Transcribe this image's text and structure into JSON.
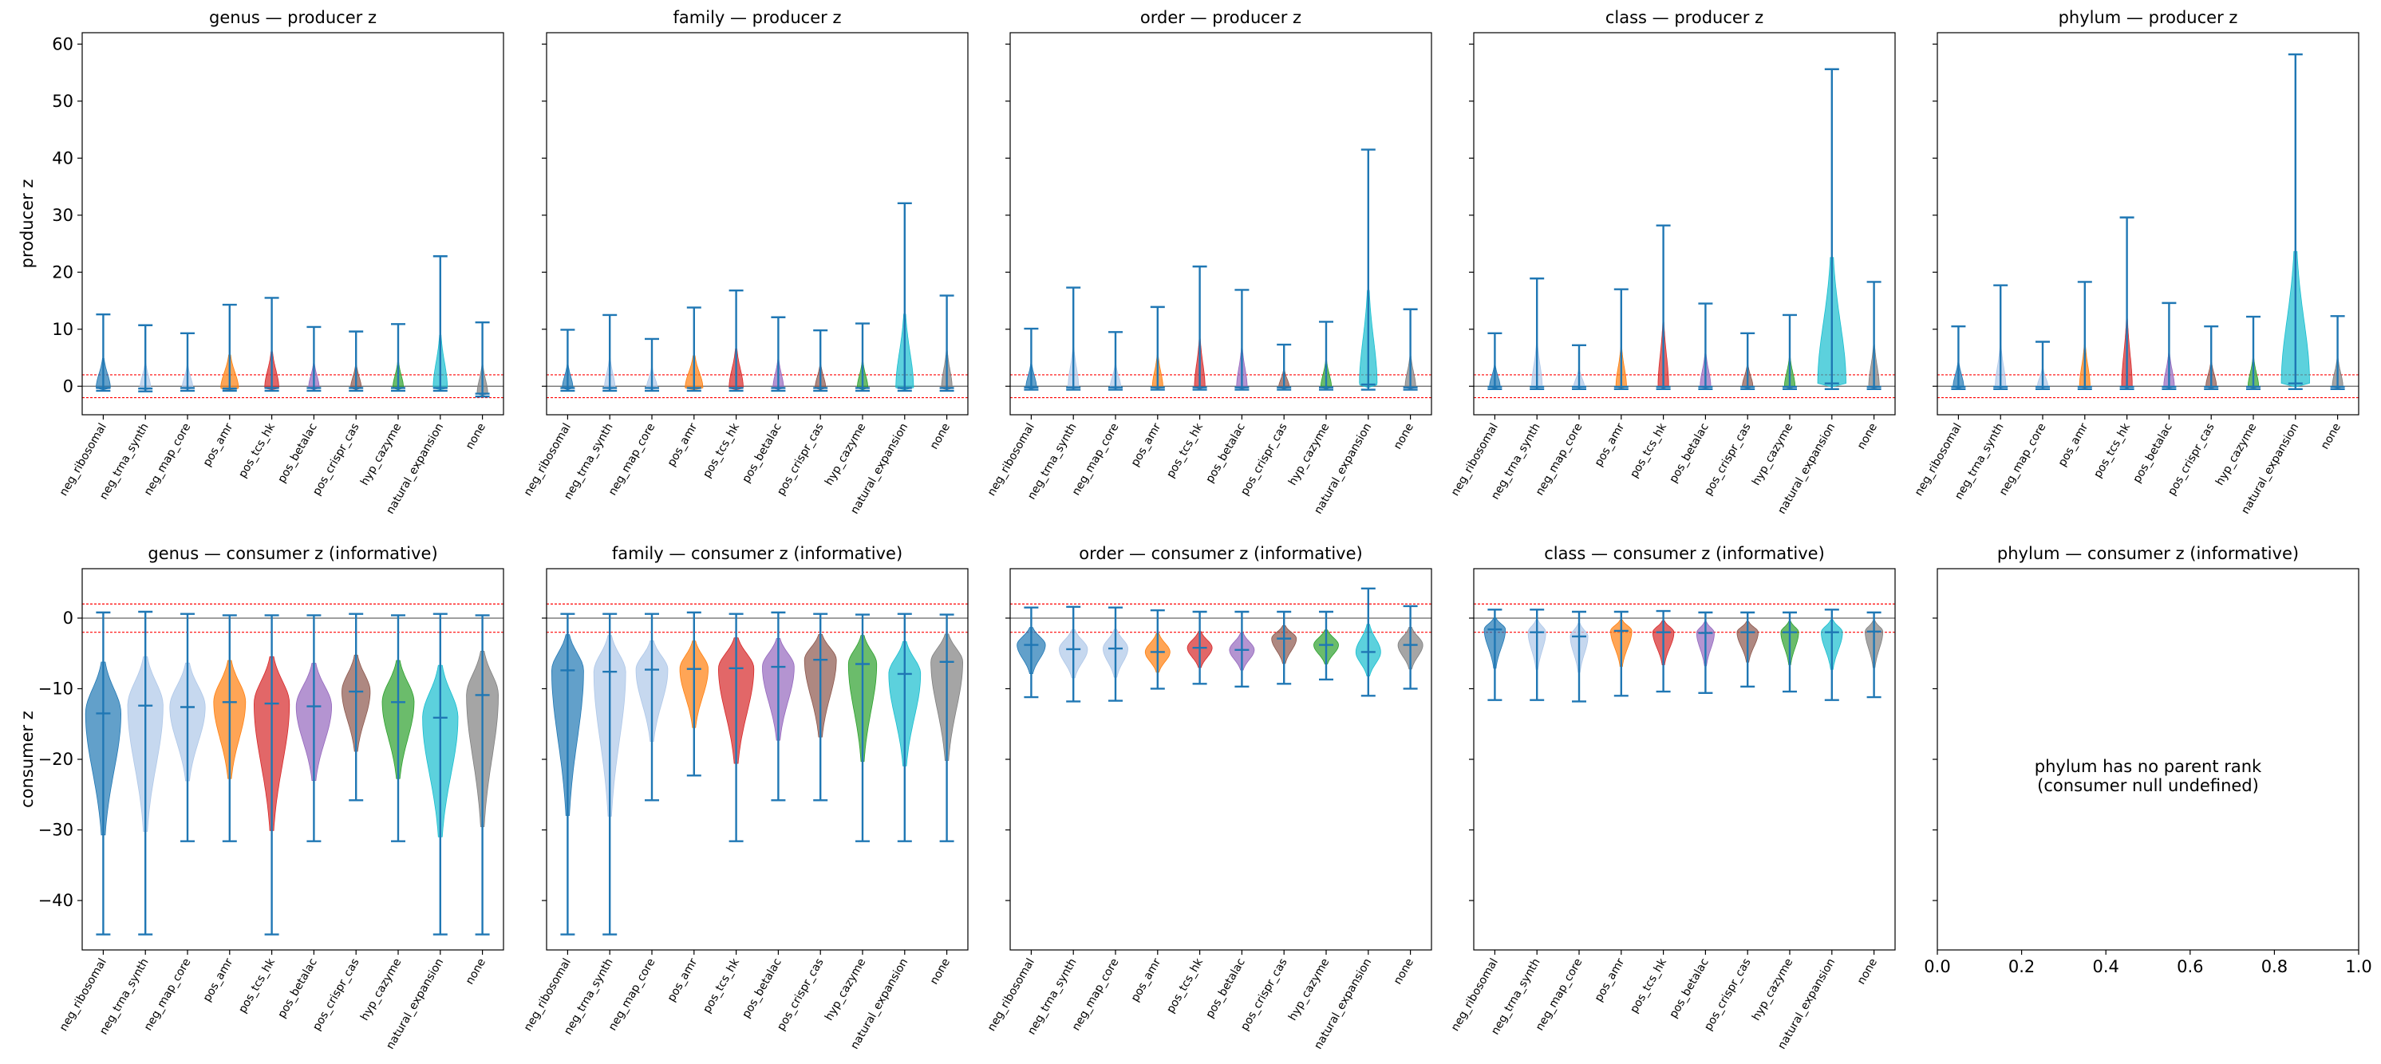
{
  "categories": [
    "neg_ribosomal",
    "neg_trna_synth",
    "neg_map_core",
    "pos_amr",
    "pos_tcs_hk",
    "pos_betalac",
    "pos_crispr_cas",
    "hyp_cazyme",
    "natural_expansion",
    "none"
  ],
  "colors": [
    "#1f77b4",
    "#aec7e8",
    "#aec7e8",
    "#ff7f0e",
    "#d62728",
    "#9467bd",
    "#8c564b",
    "#2ca02c",
    "#17becf",
    "#7f7f7f"
  ],
  "whisker_color": "#1f77b4",
  "threshold_color": "#ff0000",
  "threshold_z": [
    2,
    -2
  ],
  "chart_data": [
    {
      "type": "violin",
      "title": "genus — producer z",
      "ylabel": "producer z",
      "ylim": [
        -5,
        62
      ],
      "yticks": [
        0,
        10,
        20,
        30,
        40,
        50,
        60
      ],
      "show_yticklabels": true,
      "min": [
        -0.8,
        -0.9,
        -0.8,
        -0.8,
        -0.8,
        -0.8,
        -0.8,
        -0.8,
        -0.8,
        -1.8
      ],
      "median": [
        -0.3,
        -0.4,
        -0.3,
        -0.4,
        -0.3,
        -0.3,
        -0.3,
        -0.3,
        -0.3,
        -1.3
      ],
      "max": [
        12.6,
        10.7,
        9.3,
        14.3,
        15.5,
        10.4,
        9.6,
        10.9,
        22.8,
        11.2
      ],
      "spread": [
        0.4,
        0.3,
        0.3,
        0.5,
        0.4,
        0.3,
        0.3,
        0.3,
        0.4,
        0.3
      ]
    },
    {
      "type": "violin",
      "title": "family — producer z",
      "ylabel": "",
      "ylim": [
        -5,
        62
      ],
      "yticks": [
        0,
        10,
        20,
        30,
        40,
        50,
        60
      ],
      "show_yticklabels": false,
      "min": [
        -0.8,
        -0.8,
        -0.8,
        -0.8,
        -0.8,
        -0.8,
        -0.8,
        -0.8,
        -0.8,
        -0.8
      ],
      "median": [
        -0.3,
        -0.3,
        -0.3,
        -0.3,
        -0.3,
        -0.3,
        -0.3,
        -0.3,
        -0.3,
        -0.3
      ],
      "max": [
        9.9,
        12.5,
        8.3,
        13.8,
        16.8,
        12.1,
        9.8,
        11.0,
        32.1,
        15.9
      ],
      "spread": [
        0.3,
        0.3,
        0.3,
        0.5,
        0.4,
        0.3,
        0.3,
        0.3,
        0.5,
        0.3
      ]
    },
    {
      "type": "violin",
      "title": "order — producer z",
      "ylabel": "",
      "ylim": [
        -5,
        62
      ],
      "yticks": [
        0,
        10,
        20,
        30,
        40,
        50,
        60
      ],
      "show_yticklabels": false,
      "min": [
        -0.6,
        -0.6,
        -0.6,
        -0.6,
        -0.6,
        -0.6,
        -0.6,
        -0.6,
        -0.6,
        -0.6
      ],
      "median": [
        -0.2,
        -0.2,
        -0.2,
        -0.2,
        -0.2,
        -0.2,
        -0.2,
        -0.2,
        0.3,
        -0.2
      ],
      "max": [
        10.1,
        17.3,
        9.5,
        13.9,
        21.0,
        16.9,
        7.3,
        11.3,
        41.5,
        13.5
      ],
      "spread": [
        0.3,
        0.3,
        0.3,
        0.3,
        0.3,
        0.3,
        0.3,
        0.3,
        0.5,
        0.3
      ]
    },
    {
      "type": "violin",
      "title": "class — producer z",
      "ylabel": "",
      "ylim": [
        -5,
        62
      ],
      "yticks": [
        0,
        10,
        20,
        30,
        40,
        50,
        60
      ],
      "show_yticklabels": false,
      "min": [
        -0.5,
        -0.5,
        -0.5,
        -0.5,
        -0.5,
        -0.5,
        -0.5,
        -0.5,
        -0.5,
        -0.5
      ],
      "median": [
        -0.1,
        -0.1,
        -0.1,
        -0.1,
        -0.1,
        -0.1,
        -0.1,
        -0.1,
        0.5,
        -0.1
      ],
      "max": [
        9.3,
        18.9,
        7.2,
        17.0,
        28.2,
        14.5,
        9.3,
        12.5,
        55.6,
        18.3
      ],
      "spread": [
        0.3,
        0.3,
        0.3,
        0.3,
        0.3,
        0.3,
        0.3,
        0.3,
        0.8,
        0.3
      ]
    },
    {
      "type": "violin",
      "title": "phylum — producer z",
      "ylabel": "",
      "ylim": [
        -5,
        62
      ],
      "yticks": [
        0,
        10,
        20,
        30,
        40,
        50,
        60
      ],
      "show_yticklabels": false,
      "min": [
        -0.5,
        -0.5,
        -0.5,
        -0.5,
        -0.5,
        -0.5,
        -0.5,
        -0.5,
        -0.5,
        -0.5
      ],
      "median": [
        -0.1,
        -0.1,
        -0.1,
        -0.1,
        -0.1,
        -0.1,
        -0.1,
        -0.1,
        0.5,
        -0.1
      ],
      "max": [
        10.5,
        17.7,
        7.8,
        18.3,
        29.6,
        14.6,
        10.5,
        12.2,
        58.2,
        12.3
      ],
      "spread": [
        0.3,
        0.3,
        0.3,
        0.3,
        0.3,
        0.3,
        0.3,
        0.3,
        0.8,
        0.3
      ]
    },
    {
      "type": "violin",
      "title": "genus — consumer z (informative)",
      "ylabel": "consumer z",
      "ylim": [
        -47,
        7
      ],
      "yticks": [
        -40,
        -30,
        -20,
        -10,
        0
      ],
      "show_yticklabels": true,
      "min": [
        -44.8,
        -44.8,
        -31.6,
        -31.6,
        -44.8,
        -31.6,
        -25.8,
        -31.6,
        -44.8,
        -44.8
      ],
      "median": [
        -13.5,
        -12.4,
        -12.6,
        -11.9,
        -12.1,
        -12.5,
        -10.4,
        -11.9,
        -14.1,
        -10.9
      ],
      "max": [
        0.8,
        0.9,
        0.6,
        0.4,
        0.4,
        0.4,
        0.6,
        0.4,
        0.6,
        0.4
      ],
      "spread": [
        1.0,
        1.0,
        1.0,
        0.9,
        1.0,
        1.0,
        0.8,
        0.9,
        1.0,
        0.9
      ]
    },
    {
      "type": "violin",
      "title": "family — consumer z (informative)",
      "ylabel": "",
      "ylim": [
        -47,
        7
      ],
      "yticks": [
        -40,
        -30,
        -20,
        -10,
        0
      ],
      "show_yticklabels": false,
      "min": [
        -44.8,
        -44.8,
        -25.8,
        -22.3,
        -31.6,
        -25.8,
        -25.8,
        -31.6,
        -31.6,
        -31.6
      ],
      "median": [
        -7.4,
        -7.6,
        -7.3,
        -7.2,
        -7.1,
        -6.9,
        -5.9,
        -6.5,
        -7.9,
        -6.2
      ],
      "max": [
        0.6,
        0.6,
        0.6,
        0.8,
        0.6,
        0.8,
        0.6,
        0.5,
        0.6,
        0.5
      ],
      "spread": [
        0.9,
        0.9,
        0.9,
        0.8,
        1.0,
        0.9,
        0.9,
        0.8,
        0.9,
        0.9
      ]
    },
    {
      "type": "violin",
      "title": "order — consumer z (informative)",
      "ylabel": "",
      "ylim": [
        -47,
        7
      ],
      "yticks": [
        -40,
        -30,
        -20,
        -10,
        0
      ],
      "show_yticklabels": false,
      "min": [
        -11.2,
        -11.8,
        -11.7,
        -10.0,
        -9.3,
        -9.7,
        -9.3,
        -8.7,
        -11.0,
        -10.0
      ],
      "median": [
        -3.8,
        -4.4,
        -4.3,
        -4.8,
        -4.2,
        -4.5,
        -2.9,
        -3.8,
        -4.8,
        -3.8
      ],
      "max": [
        1.5,
        1.6,
        1.5,
        1.1,
        0.9,
        0.9,
        0.9,
        0.9,
        4.2,
        1.7
      ],
      "spread": [
        0.8,
        0.8,
        0.7,
        0.7,
        0.7,
        0.7,
        0.7,
        0.7,
        0.7,
        0.7
      ]
    },
    {
      "type": "violin",
      "title": "class — consumer z (informative)",
      "ylabel": "",
      "ylim": [
        -47,
        7
      ],
      "yticks": [
        -40,
        -30,
        -20,
        -10,
        0
      ],
      "show_yticklabels": false,
      "min": [
        -11.6,
        -11.6,
        -11.8,
        -11.0,
        -10.4,
        -10.6,
        -9.7,
        -10.4,
        -11.6,
        -11.2
      ],
      "median": [
        -1.6,
        -2.0,
        -2.6,
        -1.8,
        -2.0,
        -2.1,
        -2.0,
        -2.0,
        -2.0,
        -1.9
      ],
      "max": [
        1.2,
        1.2,
        0.9,
        0.9,
        1.0,
        0.8,
        0.8,
        0.8,
        1.2,
        0.8
      ],
      "spread": [
        0.6,
        0.5,
        0.5,
        0.6,
        0.6,
        0.5,
        0.6,
        0.5,
        0.6,
        0.5
      ]
    },
    {
      "type": "empty",
      "title": "phylum — consumer z (informative)",
      "message_line1": "phylum has no parent rank",
      "message_line2": "(consumer null undefined)",
      "xticks": [
        "0.0",
        "0.2",
        "0.4",
        "0.6",
        "0.8",
        "1.0"
      ]
    }
  ]
}
